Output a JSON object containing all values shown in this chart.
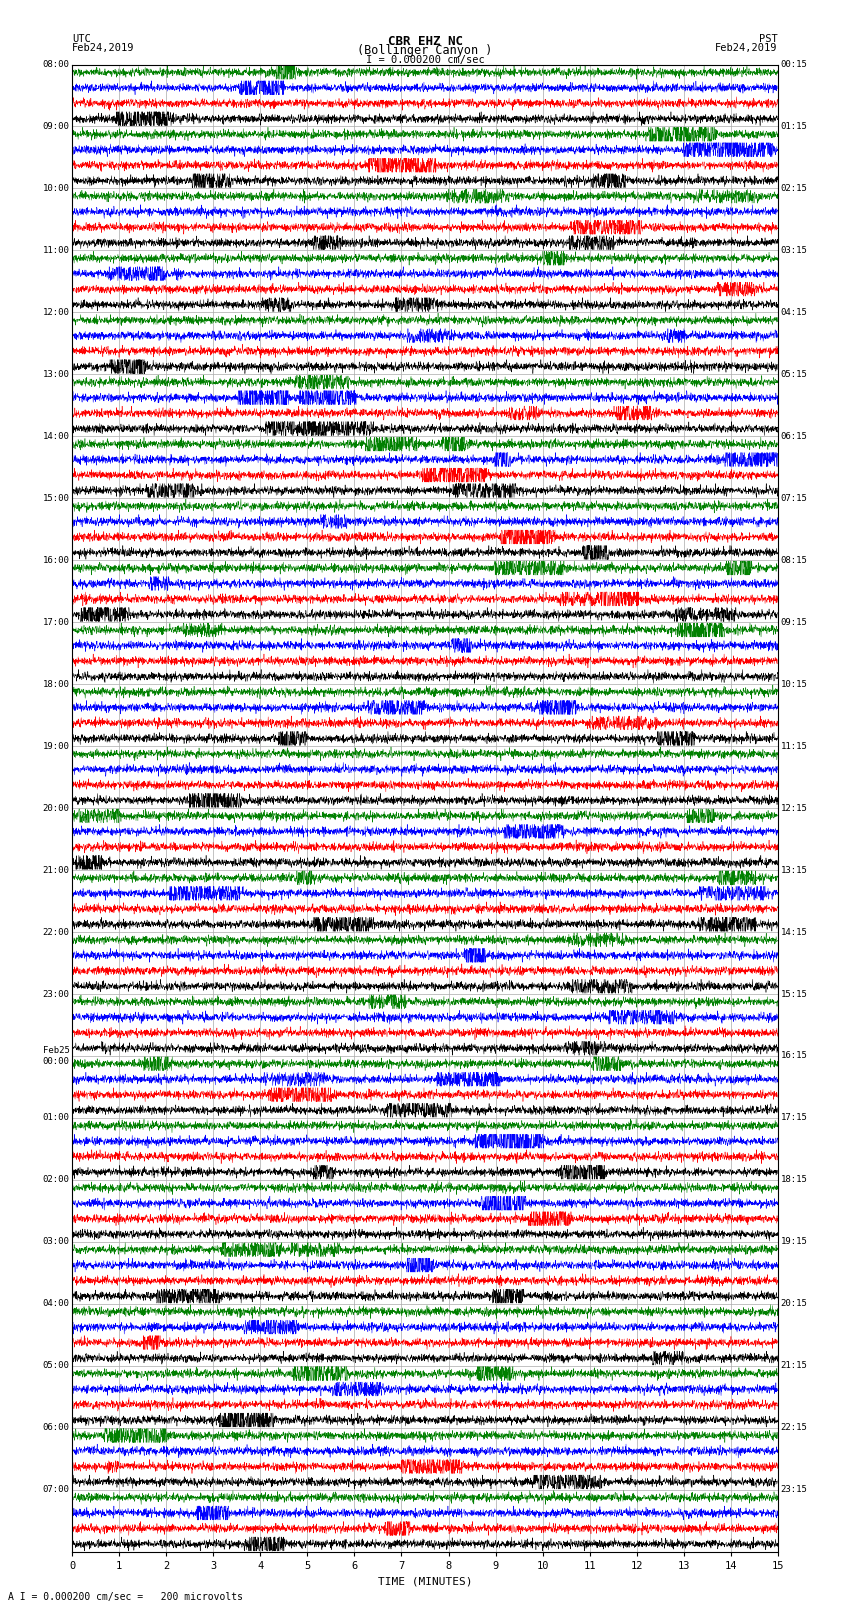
{
  "title_line1": "CBR EHZ NC",
  "title_line2": "(Bollinger Canyon )",
  "scale_text": "I = 0.000200 cm/sec",
  "footer_text": "A I = 0.000200 cm/sec =   200 microvolts",
  "left_header": "UTC",
  "left_date": "Feb24,2019",
  "right_header": "PST",
  "right_date": "Feb24,2019",
  "xlabel": "TIME (MINUTES)",
  "xmin": 0,
  "xmax": 15,
  "xticks": [
    0,
    1,
    2,
    3,
    4,
    5,
    6,
    7,
    8,
    9,
    10,
    11,
    12,
    13,
    14,
    15
  ],
  "utc_labels": [
    "08:00",
    "09:00",
    "10:00",
    "11:00",
    "12:00",
    "13:00",
    "14:00",
    "15:00",
    "16:00",
    "17:00",
    "18:00",
    "19:00",
    "20:00",
    "21:00",
    "22:00",
    "23:00",
    "Feb25\n00:00",
    "01:00",
    "02:00",
    "03:00",
    "04:00",
    "05:00",
    "06:00",
    "07:00"
  ],
  "pst_labels": [
    "00:15",
    "01:15",
    "02:15",
    "03:15",
    "04:15",
    "05:15",
    "06:15",
    "07:15",
    "08:15",
    "09:15",
    "10:15",
    "11:15",
    "12:15",
    "13:15",
    "14:15",
    "15:15",
    "16:15",
    "17:15",
    "18:15",
    "19:15",
    "20:15",
    "21:15",
    "22:15",
    "23:15"
  ],
  "num_rows": 24,
  "traces_per_row": 4,
  "trace_colors": [
    "black",
    "red",
    "blue",
    "green"
  ],
  "bg_color": "white",
  "grid_color": "#aaaaaa",
  "figsize": [
    8.5,
    16.13
  ],
  "dpi": 100,
  "noise_scale": [
    0.012,
    0.018,
    0.014,
    0.01
  ],
  "spike_prob": 0.0015,
  "spike_scale": [
    0.12,
    0.2,
    0.15,
    0.1
  ],
  "trace_lw": 0.35,
  "n_points": 3000
}
